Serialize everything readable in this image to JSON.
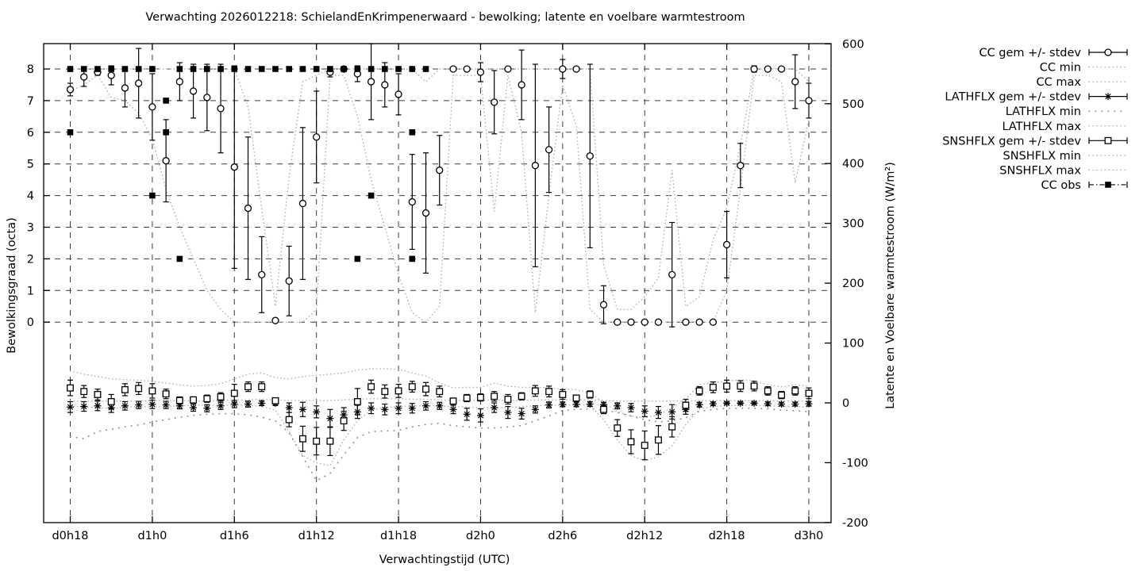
{
  "title": "Verwachting 2026012218: SchielandEnKrimpenerwaard - bewolking; latente en voelbare warmtestroom",
  "axes": {
    "x": {
      "label": "Verwachtingstijd (UTC)",
      "tick_labels": [
        "d0h18",
        "d1h0",
        "d1h6",
        "d1h12",
        "d1h18",
        "d2h0",
        "d2h6",
        "d2h12",
        "d2h18",
        "d3h0"
      ],
      "tick_hours": [
        0,
        6,
        12,
        18,
        24,
        30,
        36,
        42,
        48,
        54
      ]
    },
    "y_left": {
      "label": "Bewolkingsgraad (octa)",
      "tick_values": [
        8,
        7,
        6,
        5,
        4,
        3,
        2,
        1,
        0
      ]
    },
    "y_right": {
      "label": "Latente en Voelbare warmtestroom (W/m²)",
      "tick_values": [
        600,
        500,
        400,
        300,
        200,
        100,
        0,
        -100,
        -200
      ]
    }
  },
  "legend": [
    {
      "id": "cc_gem",
      "label": "CC gem +/- stdev",
      "style": "errorbar",
      "marker": "circle"
    },
    {
      "id": "cc_min",
      "label": "CC min",
      "style": "dots-fine",
      "marker": null
    },
    {
      "id": "cc_max",
      "label": "CC max",
      "style": "dots-fine",
      "marker": null
    },
    {
      "id": "lathflx_gem",
      "label": "LATHFLX gem +/- stdev",
      "style": "errorbar",
      "marker": "asterisk"
    },
    {
      "id": "lathflx_min",
      "label": "LATHFLX min",
      "style": "dots-sparse",
      "marker": null
    },
    {
      "id": "lathflx_max",
      "label": "LATHFLX max",
      "style": "dots-fine",
      "marker": null
    },
    {
      "id": "snshflx_gem",
      "label": "SNSHFLX gem +/- stdev",
      "style": "errorbar",
      "marker": "square-open"
    },
    {
      "id": "snshflx_min",
      "label": "SNSHFLX min",
      "style": "dots-fine",
      "marker": null
    },
    {
      "id": "snshflx_max",
      "label": "SNSHFLX max",
      "style": "dots-fine",
      "marker": null
    },
    {
      "id": "cc_obs",
      "label": "CC obs",
      "style": "dashdot",
      "marker": "square-filled"
    }
  ],
  "colors": {
    "foreground": "#000000",
    "grid_dash": "#3a3a3a",
    "minmax_dotted": "#b9b9b9",
    "lathflx_min_dotted": "#8f8f8f",
    "background": "#ffffff"
  },
  "chart_data": {
    "type": "line",
    "title": "Verwachting 2026012218: SchielandEnKrimpenerwaard - bewolking; latente en voelbare warmtestroom",
    "xlabel": "Verwachtingstijd (UTC)",
    "ylabel_left": "Bewolkingsgraad (octa)",
    "ylabel_right": "Latente en Voelbare warmtestroom (W/m²)",
    "x_hours_from_d0h18": {
      "start": 0,
      "end": 54,
      "step": 1
    },
    "y_right_range": [
      -200,
      600
    ],
    "y_left_ticks_range": [
      0,
      8
    ],
    "grid": true,
    "legend_position": "outside-right-top",
    "series": [
      {
        "id": "cc_gem",
        "name": "CC gem +/- stdev",
        "axis": "octa",
        "style": "errorbar",
        "marker": "circle",
        "values": [
          7.35,
          7.75,
          7.9,
          7.8,
          7.4,
          7.55,
          6.8,
          5.1,
          7.6,
          7.3,
          7.1,
          6.75,
          4.9,
          3.6,
          1.5,
          0.05,
          1.3,
          3.75,
          5.85,
          7.9,
          8,
          7.85,
          7.6,
          7.5,
          7.2,
          3.8,
          3.45,
          4.8,
          8,
          8,
          7.9,
          6.95,
          8,
          7.5,
          4.95,
          5.45,
          8,
          8,
          5.25,
          0.55,
          0,
          0,
          0,
          0,
          1.5,
          0,
          0,
          0,
          2.45,
          4.95,
          8,
          8,
          8,
          7.6,
          7.0
        ],
        "stdev": [
          0.2,
          0.3,
          0.1,
          0.3,
          0.6,
          1.1,
          1.05,
          1.3,
          0.6,
          0.85,
          1.05,
          1.4,
          3.2,
          2.25,
          1.2,
          0.05,
          1.1,
          2.4,
          1.45,
          0.15,
          0.05,
          0.25,
          1.2,
          0.7,
          0.65,
          1.5,
          1.9,
          1.1,
          0.05,
          0.05,
          0.3,
          1.0,
          0.05,
          1.1,
          3.2,
          1.35,
          0.3,
          0.05,
          2.9,
          0.6,
          0,
          0,
          0,
          0,
          1.65,
          0,
          0,
          0,
          1.05,
          0.7,
          0.1,
          0.05,
          0.05,
          0.85,
          0.55
        ]
      },
      {
        "id": "cc_min",
        "name": "CC min",
        "axis": "octa",
        "style": "dots-fine",
        "values": [
          7.3,
          7.5,
          7.8,
          7.1,
          7.0,
          6.6,
          5.8,
          4.2,
          3.0,
          2.0,
          1.0,
          0.4,
          0,
          0,
          0,
          0,
          0,
          0,
          0.4,
          7.8,
          7.8,
          6.5,
          4.5,
          3.0,
          1.5,
          0.3,
          0,
          0.5,
          7.8,
          7.8,
          7.8,
          3.5,
          7.8,
          6.0,
          0.3,
          4.0,
          7.5,
          6.2,
          0.4,
          0,
          0,
          0,
          0,
          0,
          0,
          0,
          0,
          0,
          1.0,
          4.2,
          7.8,
          7.8,
          7.6,
          4.4,
          6.4
        ]
      },
      {
        "id": "cc_max",
        "name": "CC max",
        "axis": "octa",
        "style": "dots-fine",
        "values": [
          8,
          8,
          8,
          8,
          8,
          8,
          8,
          8,
          8,
          8,
          8,
          8,
          8,
          6.8,
          3.6,
          0.5,
          4.6,
          7.6,
          7.8,
          8,
          8,
          8,
          8,
          8,
          8,
          8,
          7.6,
          8,
          8,
          8,
          8,
          8,
          8,
          8,
          8,
          8,
          8,
          8,
          8,
          1.8,
          0.4,
          0.4,
          0.8,
          1.4,
          4.8,
          0.5,
          0.8,
          2.6,
          3.6,
          5.6,
          8,
          8,
          8,
          8,
          7.6
        ]
      },
      {
        "id": "lathflx_gem",
        "name": "LATHFLX gem +/- stdev",
        "axis": "flux",
        "style": "errorbar",
        "marker": "asterisk",
        "values": [
          -7,
          -6,
          -5,
          -8,
          -5,
          -3.5,
          -2.5,
          -3.5,
          -5,
          -8,
          -9,
          -5,
          -2,
          -2,
          -0.5,
          -0.5,
          -8,
          -11,
          -15,
          -26,
          -20,
          -15,
          -9,
          -11,
          -9,
          -9,
          -5,
          -5,
          -11,
          -19,
          -21,
          -8,
          -16,
          -18,
          -11,
          -3.5,
          -2.5,
          -2.5,
          -2,
          -3,
          -5,
          -8,
          -14,
          -16,
          -15,
          -11,
          -3,
          -1.5,
          -0.5,
          -0.5,
          -0.5,
          -1.5,
          -2,
          -2,
          -1.5
        ],
        "stdev": [
          9,
          8,
          8,
          8,
          7,
          6,
          7,
          6,
          5,
          6,
          6,
          6,
          6,
          5,
          4,
          4,
          8,
          12,
          10,
          15,
          12,
          11,
          9,
          9,
          9,
          8,
          7,
          6,
          7,
          10,
          11,
          8,
          10,
          9,
          6,
          5,
          4,
          4,
          4,
          4,
          5,
          7,
          9,
          10,
          12,
          8,
          4,
          3,
          2,
          2,
          2,
          3,
          3,
          3,
          4
        ]
      },
      {
        "id": "lathflx_min",
        "name": "LATHFLX min",
        "axis": "flux",
        "style": "dots-sparse",
        "values": [
          -56,
          -60,
          -48,
          -44,
          -40,
          -37,
          -32,
          -28,
          -24,
          -21,
          -19,
          -18,
          -18,
          -20,
          -24,
          -30,
          -50,
          -90,
          -130,
          -118,
          -87,
          -58,
          -48,
          -47,
          -46,
          -40,
          -36,
          -34,
          -38,
          -40,
          -42,
          -42,
          -40,
          -38,
          -30,
          -22,
          -13,
          -11,
          -10,
          -12,
          -16,
          -22,
          -28,
          -32,
          -30,
          -25,
          -14,
          -11,
          -9,
          -9,
          -9,
          -10,
          -12,
          -13,
          -15
        ]
      },
      {
        "id": "lathflx_max",
        "name": "LATHFLX max",
        "axis": "flux",
        "style": "dots-fine",
        "values": [
          3,
          3,
          3,
          3,
          3,
          3,
          4,
          4,
          4,
          3,
          3,
          4,
          5,
          5,
          6,
          5,
          4,
          4,
          4,
          4,
          5,
          6,
          7,
          7,
          7,
          6,
          6,
          5,
          4,
          4,
          4,
          5,
          4,
          4,
          5,
          5,
          5,
          5,
          5,
          4,
          3,
          3,
          3,
          3,
          3,
          3,
          4,
          4,
          4,
          4,
          4,
          4,
          3,
          3,
          3
        ]
      },
      {
        "id": "snshflx_gem",
        "name": "SNSHFLX gem +/- stdev",
        "axis": "flux",
        "style": "errorbar",
        "marker": "square-open",
        "values": [
          25,
          19,
          14,
          2,
          22,
          24,
          20,
          15,
          4,
          5,
          7,
          10,
          16,
          27,
          27,
          3.5,
          -28,
          -60,
          -64,
          -64,
          -30,
          2,
          27,
          19,
          20,
          27,
          23,
          19,
          3,
          8,
          9,
          11,
          6,
          11,
          20,
          19,
          14,
          8,
          14,
          -11,
          -42,
          -65,
          -71,
          -62,
          -40,
          -4,
          20,
          26,
          28,
          28,
          28,
          20,
          13,
          20,
          16
        ],
        "stdev": [
          13,
          10,
          9,
          12,
          10,
          10,
          12,
          8,
          6,
          5,
          6,
          7,
          15,
          8,
          8,
          5,
          12,
          21,
          23,
          24,
          16,
          22,
          11,
          11,
          11,
          9,
          11,
          9,
          5,
          6,
          6,
          8,
          8,
          6,
          9,
          9,
          8,
          5,
          6,
          7,
          14,
          20,
          24,
          24,
          17,
          10,
          7,
          9,
          10,
          9,
          8,
          7,
          6,
          7,
          9
        ]
      },
      {
        "id": "snshflx_min",
        "name": "SNSHFLX min",
        "axis": "flux",
        "style": "dots-fine",
        "values": [
          -5,
          -7,
          -8,
          -10,
          -7,
          -6,
          -7,
          -6,
          -5,
          -4,
          -4,
          -4,
          -4,
          -4,
          -6,
          -12,
          -48,
          -88,
          -100,
          -105,
          -62,
          -30,
          -12,
          -8,
          -6,
          -5,
          -5,
          -5,
          -6,
          -7,
          -8,
          -8,
          -8,
          -6,
          -5,
          -4,
          -4,
          -3,
          -4,
          -28,
          -62,
          -88,
          -97,
          -90,
          -72,
          -36,
          -10,
          -6,
          -5,
          -4,
          -4,
          -5,
          -6,
          -6,
          -7
        ]
      },
      {
        "id": "snshflx_max",
        "name": "SNSHFLX max",
        "axis": "flux",
        "style": "dots-fine",
        "values": [
          53,
          48,
          44,
          40,
          39,
          38,
          36,
          33,
          30,
          28,
          29,
          32,
          40,
          48,
          50,
          42,
          40,
          44,
          46,
          48,
          50,
          55,
          57,
          57,
          56,
          50,
          45,
          33,
          25,
          26,
          26,
          33,
          28,
          26,
          26,
          25,
          23,
          22,
          17,
          0,
          -15,
          -22,
          -25,
          -20,
          -8,
          6,
          31,
          33,
          37,
          38,
          37,
          30,
          27,
          30,
          28
        ]
      },
      {
        "id": "cc_obs",
        "name": "CC obs",
        "axis": "octa",
        "style": "points",
        "marker": "square-filled",
        "points": [
          [
            0,
            8
          ],
          [
            0,
            6
          ],
          [
            1,
            8
          ],
          [
            2,
            8
          ],
          [
            3,
            8
          ],
          [
            4,
            8
          ],
          [
            5,
            8
          ],
          [
            6,
            8
          ],
          [
            6,
            4
          ],
          [
            7,
            7
          ],
          [
            7,
            6
          ],
          [
            8,
            8
          ],
          [
            8,
            2
          ],
          [
            9,
            8
          ],
          [
            10,
            8
          ],
          [
            11,
            8
          ],
          [
            12,
            8
          ],
          [
            13,
            8
          ],
          [
            14,
            8
          ],
          [
            15,
            8
          ],
          [
            16,
            8
          ],
          [
            17,
            8
          ],
          [
            18,
            8
          ],
          [
            19,
            8
          ],
          [
            20,
            8
          ],
          [
            21,
            8
          ],
          [
            21,
            2
          ],
          [
            22,
            8
          ],
          [
            22,
            4
          ],
          [
            23,
            8
          ],
          [
            24,
            8
          ],
          [
            25,
            8
          ],
          [
            25,
            6
          ],
          [
            25,
            2
          ],
          [
            26,
            8
          ]
        ]
      }
    ]
  }
}
